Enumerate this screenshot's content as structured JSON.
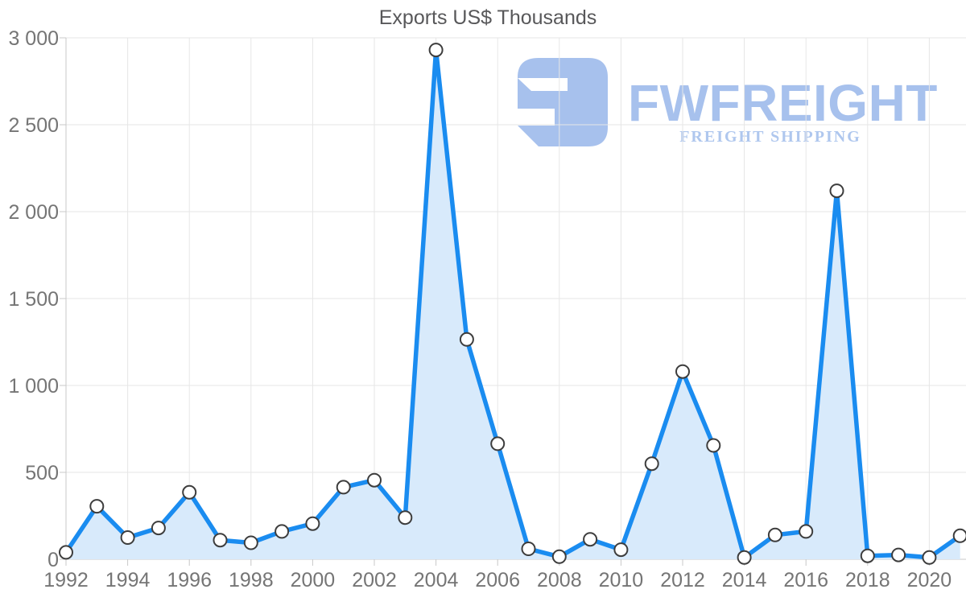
{
  "title": "Exports US$ Thousands",
  "watermark": {
    "brand": "FWFREIGHT",
    "tagline": "FREIGHT SHIPPING",
    "icon": "fwfreight-logo-icon",
    "brand_color": "#a7c1ed",
    "tagline_color": "#afc7ee"
  },
  "colors": {
    "line": "#1a8cf0",
    "area_fill": "#d8eafb",
    "marker_fill": "#ffffff",
    "marker_stroke": "#3d3d3d",
    "gridline": "#e6e6e6",
    "axis_line": "#c8c8c8",
    "tick_label": "#757575",
    "title": "#58585a"
  },
  "chart_data": {
    "type": "area",
    "title": "Exports US$ Thousands",
    "xlabel": "",
    "ylabel": "",
    "x": [
      1992,
      1993,
      1994,
      1995,
      1996,
      1997,
      1998,
      1999,
      2000,
      2001,
      2002,
      2003,
      2004,
      2005,
      2006,
      2007,
      2008,
      2009,
      2010,
      2011,
      2012,
      2013,
      2014,
      2015,
      2016,
      2017,
      2018,
      2019,
      2020,
      2021
    ],
    "values": [
      40,
      305,
      125,
      180,
      385,
      110,
      95,
      160,
      205,
      415,
      455,
      240,
      2930,
      1265,
      665,
      60,
      15,
      115,
      55,
      550,
      1080,
      655,
      10,
      140,
      160,
      2120,
      20,
      25,
      10,
      135
    ],
    "ylim": [
      0,
      3000
    ],
    "y_ticks": [
      0,
      500,
      1000,
      1500,
      2000,
      2500,
      3000
    ],
    "y_tick_labels": [
      "0",
      "500",
      "1 000",
      "1 500",
      "2 000",
      "2 500",
      "3 000"
    ],
    "x_tick_years": [
      1992,
      1994,
      1996,
      1998,
      2000,
      2002,
      2004,
      2006,
      2008,
      2010,
      2012,
      2014,
      2016,
      2018,
      2020
    ],
    "grid": true,
    "legend": "none",
    "marker": "circle"
  }
}
